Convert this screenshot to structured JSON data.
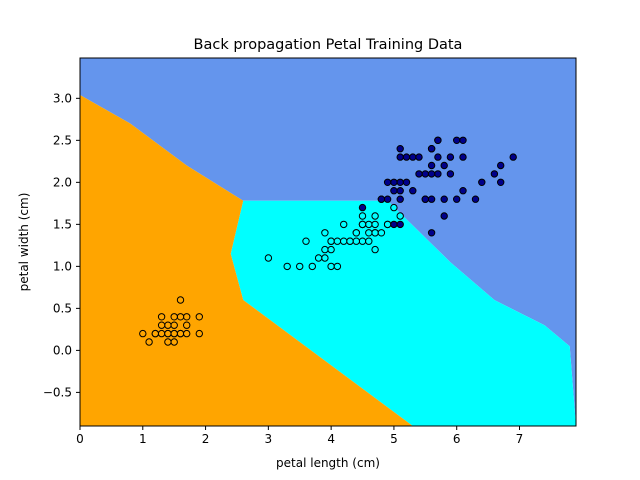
{
  "chart_data": {
    "type": "scatter",
    "title": "Back propagation Petal Training Data",
    "xlabel": "petal length (cm)",
    "ylabel": "petal width (cm)",
    "xlim": [
      0,
      7.9
    ],
    "ylim": [
      -0.9,
      3.48
    ],
    "xticks": [
      0,
      1,
      2,
      3,
      4,
      5,
      6,
      7
    ],
    "yticks": [
      -0.5,
      0.0,
      0.5,
      1.0,
      1.5,
      2.0,
      2.5,
      3.0
    ],
    "grid": false,
    "background": "decision regions",
    "regions": [
      {
        "class": 0,
        "color": "#ffa500",
        "polygon": [
          [
            0,
            3.04
          ],
          [
            0.8,
            2.7
          ],
          [
            1.7,
            2.2
          ],
          [
            2.6,
            1.78
          ],
          [
            2.4,
            1.15
          ],
          [
            2.6,
            0.6
          ],
          [
            5.3,
            -0.9
          ],
          [
            0,
            -0.9
          ]
        ]
      },
      {
        "class": 1,
        "color": "#00ffff",
        "polygon": [
          [
            2.6,
            1.78
          ],
          [
            4.9,
            1.78
          ],
          [
            5.9,
            1.05
          ],
          [
            6.6,
            0.6
          ],
          [
            7.4,
            0.3
          ],
          [
            7.8,
            0.05
          ],
          [
            7.9,
            -0.9
          ],
          [
            5.3,
            -0.9
          ],
          [
            2.6,
            0.6
          ],
          [
            2.4,
            1.15
          ]
        ]
      },
      {
        "class": 2,
        "color": "#6495ed",
        "polygon": [
          [
            0,
            3.48
          ],
          [
            7.9,
            3.48
          ],
          [
            7.9,
            -0.9
          ],
          [
            7.8,
            0.05
          ],
          [
            7.4,
            0.3
          ],
          [
            6.6,
            0.6
          ],
          [
            5.9,
            1.05
          ],
          [
            4.9,
            1.78
          ],
          [
            2.6,
            1.78
          ],
          [
            1.7,
            2.2
          ],
          [
            0.8,
            2.7
          ],
          [
            0,
            3.04
          ]
        ]
      }
    ],
    "series": [
      {
        "class": 0,
        "color": "#ffa500",
        "points": [
          [
            1.4,
            0.2
          ],
          [
            1.3,
            0.2
          ],
          [
            1.5,
            0.2
          ],
          [
            1.7,
            0.4
          ],
          [
            1.4,
            0.3
          ],
          [
            1.5,
            0.1
          ],
          [
            1.6,
            0.2
          ],
          [
            1.4,
            0.1
          ],
          [
            1.1,
            0.1
          ],
          [
            1.2,
            0.2
          ],
          [
            1.3,
            0.4
          ],
          [
            1.7,
            0.3
          ],
          [
            1.5,
            0.3
          ],
          [
            1.0,
            0.2
          ],
          [
            1.9,
            0.2
          ],
          [
            1.6,
            0.4
          ],
          [
            1.5,
            0.4
          ],
          [
            1.2,
            0.2
          ],
          [
            1.3,
            0.3
          ],
          [
            1.9,
            0.4
          ],
          [
            1.6,
            0.6
          ],
          [
            1.6,
            0.2
          ],
          [
            1.4,
            0.2
          ],
          [
            1.5,
            0.2
          ],
          [
            1.7,
            0.2
          ]
        ]
      },
      {
        "class": 1,
        "color": "#00ffff",
        "points": [
          [
            4.7,
            1.4
          ],
          [
            4.5,
            1.5
          ],
          [
            4.9,
            1.5
          ],
          [
            4.0,
            1.3
          ],
          [
            4.6,
            1.5
          ],
          [
            4.5,
            1.3
          ],
          [
            4.7,
            1.6
          ],
          [
            3.3,
            1.0
          ],
          [
            4.6,
            1.3
          ],
          [
            3.9,
            1.4
          ],
          [
            3.5,
            1.0
          ],
          [
            4.2,
            1.5
          ],
          [
            4.0,
            1.0
          ],
          [
            4.7,
            1.4
          ],
          [
            3.6,
            1.3
          ],
          [
            4.4,
            1.4
          ],
          [
            4.1,
            1.0
          ],
          [
            4.5,
            1.5
          ],
          [
            3.9,
            1.1
          ],
          [
            4.8,
            1.8
          ],
          [
            4.0,
            1.3
          ],
          [
            4.9,
            1.5
          ],
          [
            4.3,
            1.3
          ],
          [
            4.4,
            1.4
          ],
          [
            4.8,
            1.4
          ],
          [
            5.0,
            1.7
          ],
          [
            4.5,
            1.5
          ],
          [
            3.8,
            1.1
          ],
          [
            3.7,
            1.0
          ],
          [
            3.9,
            1.2
          ],
          [
            5.1,
            1.6
          ],
          [
            4.5,
            1.6
          ],
          [
            4.7,
            1.5
          ],
          [
            4.4,
            1.3
          ],
          [
            4.1,
            1.3
          ],
          [
            4.0,
            1.2
          ],
          [
            4.6,
            1.4
          ],
          [
            3.0,
            1.1
          ],
          [
            4.2,
            1.3
          ],
          [
            4.3,
            1.3
          ],
          [
            4.7,
            1.2
          ]
        ]
      },
      {
        "class": 2,
        "color": "#00008b",
        "points": [
          [
            6.0,
            2.5
          ],
          [
            5.1,
            1.9
          ],
          [
            5.9,
            2.1
          ],
          [
            5.6,
            1.8
          ],
          [
            5.8,
            2.2
          ],
          [
            6.6,
            2.1
          ],
          [
            4.5,
            1.7
          ],
          [
            6.3,
            1.8
          ],
          [
            6.1,
            2.5
          ],
          [
            5.1,
            2.0
          ],
          [
            5.3,
            1.9
          ],
          [
            5.5,
            2.1
          ],
          [
            5.0,
            2.0
          ],
          [
            5.1,
            2.4
          ],
          [
            5.3,
            2.3
          ],
          [
            5.5,
            1.8
          ],
          [
            6.7,
            2.2
          ],
          [
            6.9,
            2.3
          ],
          [
            5.0,
            1.5
          ],
          [
            5.7,
            2.3
          ],
          [
            4.9,
            2.0
          ],
          [
            6.7,
            2.0
          ],
          [
            4.9,
            1.8
          ],
          [
            5.7,
            2.1
          ],
          [
            6.0,
            1.8
          ],
          [
            4.8,
            1.8
          ],
          [
            5.8,
            1.6
          ],
          [
            6.1,
            1.9
          ],
          [
            6.4,
            2.0
          ],
          [
            5.6,
            2.2
          ],
          [
            5.1,
            1.5
          ],
          [
            5.6,
            1.4
          ],
          [
            6.1,
            2.3
          ],
          [
            5.6,
            2.4
          ],
          [
            5.5,
            1.8
          ],
          [
            5.4,
            2.1
          ],
          [
            5.6,
            2.4
          ],
          [
            5.1,
            2.3
          ],
          [
            5.9,
            2.3
          ],
          [
            5.7,
            2.5
          ],
          [
            5.2,
            2.3
          ],
          [
            5.0,
            1.9
          ],
          [
            5.2,
            2.0
          ],
          [
            5.4,
            2.3
          ],
          [
            5.1,
            1.8
          ],
          [
            5.8,
            1.8
          ],
          [
            5.7,
            2.5
          ],
          [
            5.6,
            2.1
          ]
        ]
      }
    ]
  }
}
